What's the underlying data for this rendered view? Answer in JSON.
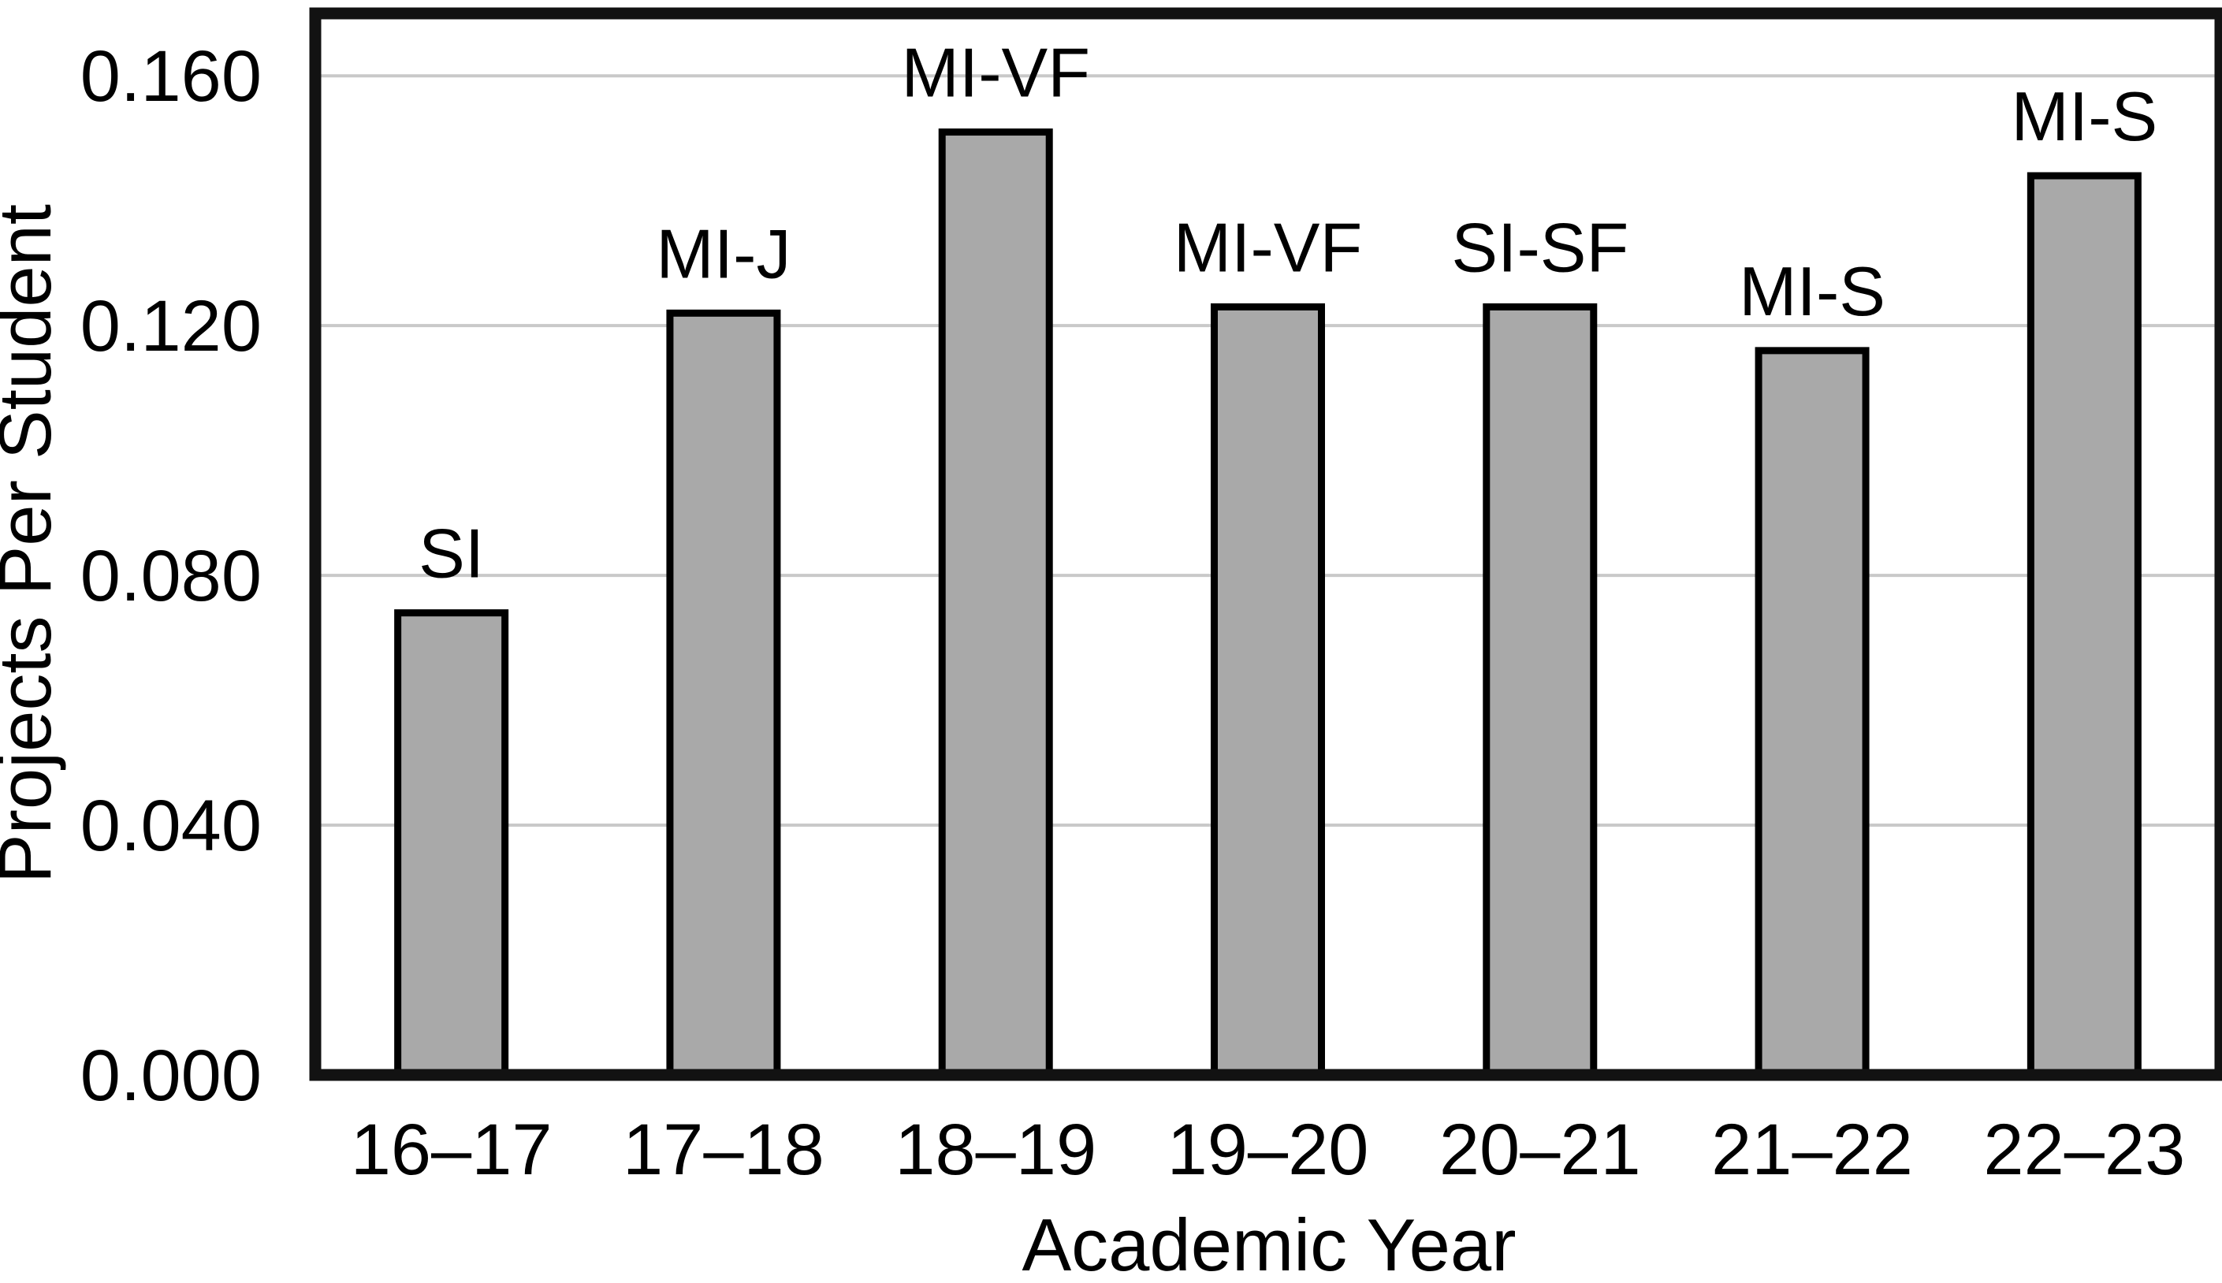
{
  "chart_data": {
    "type": "bar",
    "title": "",
    "xlabel": "Academic Year",
    "ylabel": "Projects Per Student",
    "categories": [
      "16–17",
      "17–18",
      "18–19",
      "19–20",
      "20–21",
      "21–22",
      "22–23"
    ],
    "values": [
      0.074,
      0.122,
      0.151,
      0.123,
      0.123,
      0.116,
      0.144
    ],
    "bar_labels": [
      "SI",
      "MI-J",
      "MI-VF",
      "MI-VF",
      "SI-SF",
      "MI-S",
      "MI-S"
    ],
    "y_ticks": [
      {
        "label": "0.000",
        "value": 0.0
      },
      {
        "label": "0.040",
        "value": 0.04
      },
      {
        "label": "0.080",
        "value": 0.08
      },
      {
        "label": "0.120",
        "value": 0.12
      },
      {
        "label": "0.160",
        "value": 0.16
      }
    ],
    "ylim": [
      0.0,
      0.17
    ],
    "grid": true,
    "legend": "none",
    "colors": {
      "bar_fill": "#A9A9A9",
      "bar_border": "#000000",
      "gridline": "#C9C9C9",
      "frame": "#121212",
      "background": "#FFFFFF",
      "text": "#000000"
    }
  }
}
